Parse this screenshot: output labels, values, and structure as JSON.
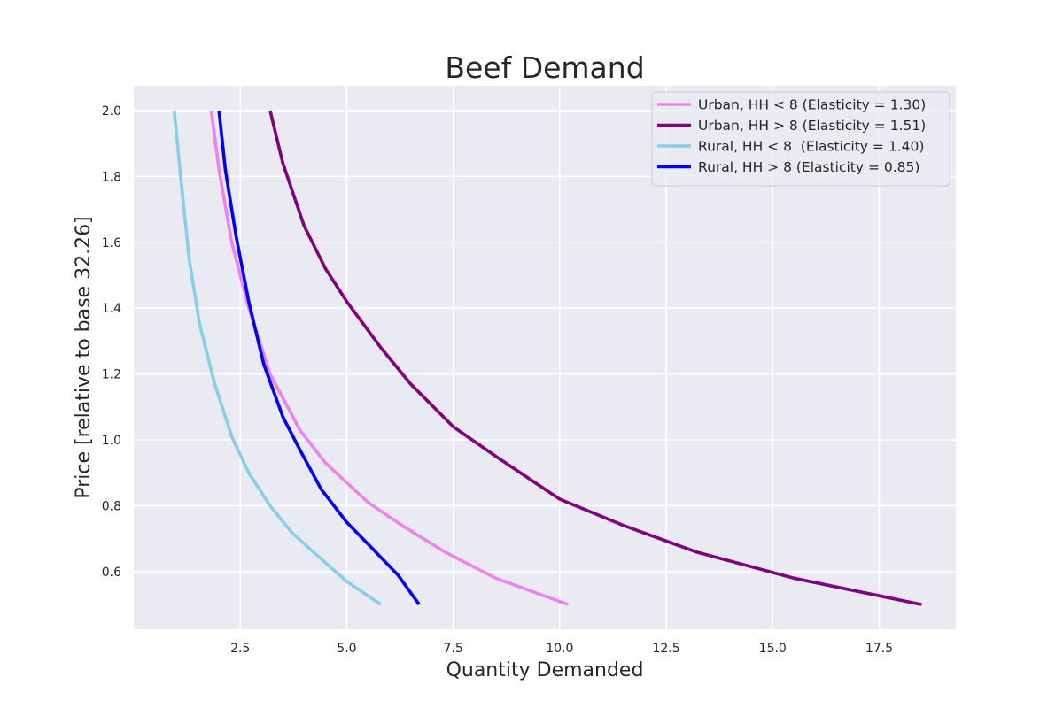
{
  "chart_data": {
    "type": "line",
    "title": "Beef Demand",
    "xlabel": "Quantity Demanded",
    "ylabel": "Price [relative to base 32.26]",
    "xlim": [
      0,
      19.3
    ],
    "ylim": [
      0.425,
      2.075
    ],
    "x_ticks": [
      2.5,
      5.0,
      7.5,
      10.0,
      12.5,
      15.0,
      17.5
    ],
    "x_tick_labels": [
      "2.5",
      "5.0",
      "7.5",
      "10.0",
      "12.5",
      "15.0",
      "17.5"
    ],
    "y_ticks": [
      0.6,
      0.8,
      1.0,
      1.2,
      1.4,
      1.6,
      1.8,
      2.0
    ],
    "y_tick_labels": [
      "0.6",
      "0.8",
      "1.0",
      "1.2",
      "1.4",
      "1.6",
      "1.8",
      "2.0"
    ],
    "grid": true,
    "legend_position": "top-right",
    "background_color": "#eaeaf2",
    "grid_color": "#ffffff",
    "series": [
      {
        "name": "Urban, HH < 8 (Elasticity = 1.30)",
        "color": "#ee82ee",
        "points": [
          [
            1.82,
            2.0
          ],
          [
            2.0,
            1.82
          ],
          [
            2.3,
            1.6
          ],
          [
            2.7,
            1.4
          ],
          [
            3.2,
            1.2
          ],
          [
            3.9,
            1.03
          ],
          [
            4.5,
            0.93
          ],
          [
            5.5,
            0.81
          ],
          [
            6.3,
            0.74
          ],
          [
            7.3,
            0.66
          ],
          [
            8.5,
            0.58
          ],
          [
            10.2,
            0.5
          ]
        ]
      },
      {
        "name": "Urban, HH > 8 (Elasticity = 1.51)",
        "color": "#800080",
        "points": [
          [
            3.2,
            2.0
          ],
          [
            3.5,
            1.84
          ],
          [
            4.0,
            1.65
          ],
          [
            4.5,
            1.52
          ],
          [
            5.0,
            1.42
          ],
          [
            5.8,
            1.28
          ],
          [
            6.5,
            1.17
          ],
          [
            7.5,
            1.04
          ],
          [
            8.5,
            0.95
          ],
          [
            10.0,
            0.82
          ],
          [
            11.5,
            0.74
          ],
          [
            13.2,
            0.66
          ],
          [
            15.5,
            0.58
          ],
          [
            18.5,
            0.5
          ]
        ]
      },
      {
        "name": "Rural, HH < 8  (Elasticity = 1.40)",
        "color": "#87ceeb",
        "points": [
          [
            0.95,
            2.0
          ],
          [
            1.1,
            1.8
          ],
          [
            1.3,
            1.55
          ],
          [
            1.55,
            1.35
          ],
          [
            1.9,
            1.17
          ],
          [
            2.3,
            1.01
          ],
          [
            2.7,
            0.9
          ],
          [
            3.2,
            0.8
          ],
          [
            3.7,
            0.72
          ],
          [
            4.3,
            0.65
          ],
          [
            5.0,
            0.57
          ],
          [
            5.8,
            0.5
          ]
        ]
      },
      {
        "name": "Rural, HH > 8 (Elasticity = 0.85)",
        "color": "#0000ff",
        "points": [
          [
            2.0,
            2.0
          ],
          [
            2.15,
            1.82
          ],
          [
            2.4,
            1.62
          ],
          [
            2.7,
            1.42
          ],
          [
            3.05,
            1.23
          ],
          [
            3.5,
            1.07
          ],
          [
            3.9,
            0.97
          ],
          [
            4.4,
            0.85
          ],
          [
            5.0,
            0.75
          ],
          [
            5.6,
            0.67
          ],
          [
            6.2,
            0.59
          ],
          [
            6.7,
            0.5
          ]
        ]
      }
    ]
  }
}
